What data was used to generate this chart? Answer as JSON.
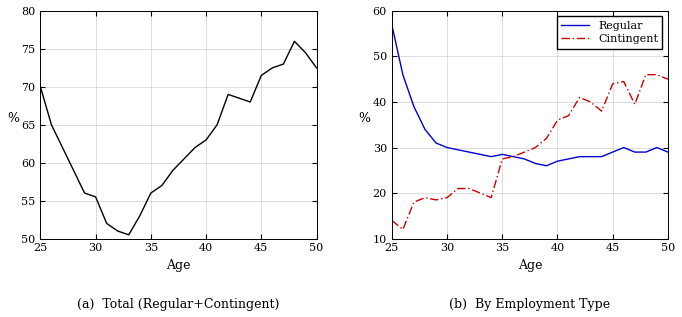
{
  "total_x": [
    25,
    26,
    27,
    28,
    29,
    30,
    31,
    32,
    33,
    34,
    35,
    36,
    37,
    38,
    39,
    40,
    41,
    42,
    43,
    44,
    45,
    46,
    47,
    48,
    49,
    50
  ],
  "total_y": [
    70,
    65,
    62,
    59,
    56,
    55.5,
    52,
    51,
    50.5,
    53,
    56,
    57,
    59,
    60.5,
    62,
    63,
    65,
    69,
    68.5,
    68,
    71.5,
    72.5,
    73,
    76,
    74.5,
    72.5
  ],
  "regular_x": [
    25,
    26,
    27,
    28,
    29,
    30,
    31,
    32,
    33,
    34,
    35,
    36,
    37,
    38,
    39,
    40,
    41,
    42,
    43,
    44,
    45,
    46,
    47,
    48,
    49,
    50
  ],
  "regular_y": [
    57,
    46,
    39,
    34,
    31,
    30,
    29.5,
    29,
    28.5,
    28,
    28.5,
    28,
    27.5,
    26.5,
    26,
    27,
    27.5,
    28,
    28,
    28,
    29,
    30,
    29,
    29,
    30,
    29
  ],
  "contingent_x": [
    25,
    26,
    27,
    28,
    29,
    30,
    31,
    32,
    33,
    34,
    35,
    36,
    37,
    38,
    39,
    40,
    41,
    42,
    43,
    44,
    45,
    46,
    47,
    48,
    49,
    50
  ],
  "contingent_y": [
    14,
    12,
    18,
    19,
    18.5,
    19,
    21,
    21,
    20,
    19,
    27.5,
    28,
    29,
    30,
    32,
    36,
    37,
    41,
    40,
    38,
    44,
    44.5,
    39.5,
    46,
    46,
    45
  ],
  "total_xlim": [
    25,
    50
  ],
  "total_ylim": [
    50,
    80
  ],
  "total_yticks": [
    50,
    55,
    60,
    65,
    70,
    75,
    80
  ],
  "total_xticks": [
    25,
    30,
    35,
    40,
    45,
    50
  ],
  "emp_xlim": [
    25,
    50
  ],
  "emp_ylim": [
    10,
    60
  ],
  "emp_yticks": [
    10,
    20,
    30,
    40,
    50,
    60
  ],
  "emp_xticks": [
    25,
    30,
    35,
    40,
    45,
    50
  ],
  "xlabel": "Age",
  "ylabel": "%",
  "caption_a": "(a)  Total (Regular+Contingent)",
  "caption_b": "(b)  By Employment Type",
  "legend_regular": "Regular",
  "legend_contingent": "Cintingent",
  "color_regular": "#0000cc",
  "color_contingent": "#cc0000",
  "color_total": "#000000",
  "background_color": "#ffffff",
  "grid_color": "#d0d0d0"
}
